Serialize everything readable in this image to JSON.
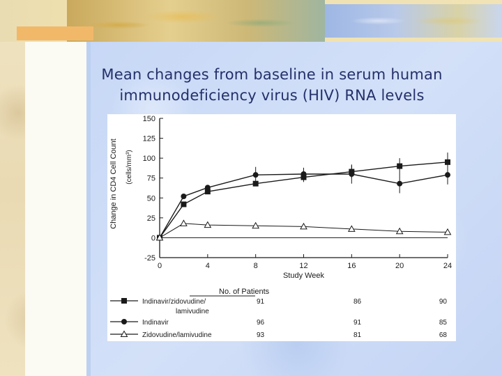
{
  "slide": {
    "title_line1": "Mean changes from baseline in serum human",
    "title_line2": "immunodeficiency virus (HIV) RNA levels"
  },
  "colors": {
    "title_text": "#24306a",
    "background_blue": "#c7d8f6",
    "parchment": "#efe6c8",
    "line": "#1a1a1a"
  },
  "chart_data": {
    "type": "line",
    "title": "",
    "xlabel": "Study Week",
    "ylabel": "Change in CD4 Cell Count",
    "ylabel_unit": "(cells/mm³)",
    "xlim": [
      0,
      24
    ],
    "ylim": [
      -25,
      150
    ],
    "xticks": [
      0,
      4,
      8,
      12,
      16,
      20,
      24
    ],
    "yticks": [
      -25,
      0,
      25,
      50,
      75,
      100,
      125,
      150
    ],
    "grid": false,
    "legend_title": "No. of Patients",
    "legend_placement": "bottom",
    "series": [
      {
        "name": "Indinavir/zidovudine/lamivudine",
        "name_line1": "Indinavir/zidovudine/",
        "name_line2": "lamivudine",
        "marker": "square",
        "x": [
          0,
          2,
          4,
          8,
          12,
          16,
          20,
          24
        ],
        "y": [
          0,
          42,
          58,
          68,
          76,
          83,
          90,
          95
        ],
        "errors": [
          0,
          0,
          0,
          0,
          6,
          8,
          10,
          12
        ],
        "patients": [
          "91",
          "86",
          "90"
        ]
      },
      {
        "name": "Indinavir",
        "marker": "circle",
        "x": [
          0,
          2,
          4,
          8,
          12,
          16,
          20,
          24
        ],
        "y": [
          0,
          52,
          63,
          79,
          80,
          80,
          68,
          79
        ],
        "errors": [
          0,
          0,
          0,
          10,
          8,
          12,
          12,
          12
        ],
        "patients": [
          "96",
          "91",
          "85"
        ]
      },
      {
        "name": "Zidovudine/lamivudine",
        "marker": "triangle",
        "x": [
          0,
          2,
          4,
          8,
          12,
          16,
          20,
          24
        ],
        "y": [
          0,
          18,
          16,
          15,
          14,
          11,
          8,
          7
        ],
        "errors": [
          0,
          0,
          0,
          0,
          0,
          0,
          0,
          0
        ],
        "patients": [
          "93",
          "81",
          "68"
        ]
      }
    ]
  }
}
